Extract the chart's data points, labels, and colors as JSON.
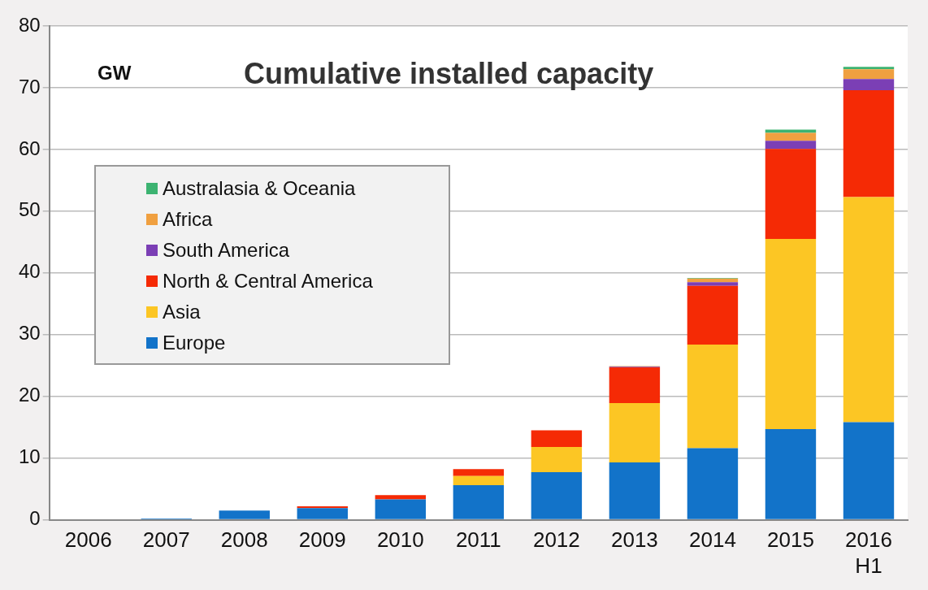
{
  "chart_data": {
    "type": "bar",
    "title": "Cumulative installed capacity",
    "ylabel": "GW",
    "categories": [
      "2006",
      "2007",
      "2008",
      "2009",
      "2010",
      "2011",
      "2012",
      "2013",
      "2014",
      "2015",
      "2016 H1"
    ],
    "stacked": true,
    "ylim": [
      0,
      80
    ],
    "yticks": [
      0,
      10,
      20,
      30,
      40,
      50,
      60,
      70,
      80
    ],
    "grid": "y",
    "legend": "left",
    "series": [
      {
        "name": "Europe",
        "color": "#1273c9",
        "values": [
          0,
          0.2,
          1.5,
          1.9,
          3.3,
          5.6,
          7.7,
          9.3,
          11.6,
          14.7,
          15.8
        ]
      },
      {
        "name": "Asia",
        "color": "#fcc624",
        "values": [
          0,
          0,
          0,
          0,
          0,
          1.5,
          4.1,
          9.6,
          16.8,
          30.8,
          36.5
        ]
      },
      {
        "name": "North & Central America",
        "color": "#f52a05",
        "values": [
          0,
          0,
          0,
          0.3,
          0.7,
          1.1,
          2.7,
          5.8,
          9.5,
          14.6,
          17.3
        ]
      },
      {
        "name": "South America",
        "color": "#7b3fb5",
        "values": [
          0,
          0,
          0,
          0,
          0,
          0,
          0,
          0.1,
          0.6,
          1.3,
          1.8
        ]
      },
      {
        "name": "Africa",
        "color": "#f0a040",
        "values": [
          0,
          0,
          0,
          0,
          0,
          0,
          0,
          0.1,
          0.6,
          1.3,
          1.6
        ]
      },
      {
        "name": "Australasia & Oceania",
        "color": "#3cb371",
        "values": [
          0,
          0,
          0,
          0,
          0,
          0,
          0,
          0,
          0.1,
          0.5,
          0.4
        ]
      }
    ]
  }
}
